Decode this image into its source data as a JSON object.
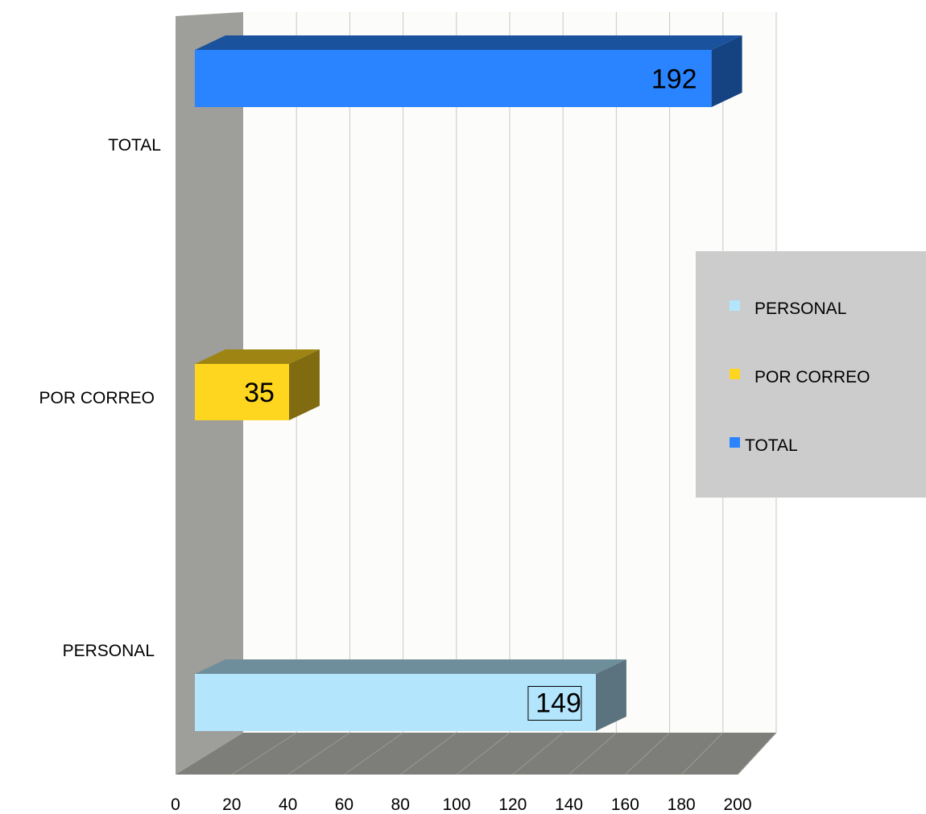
{
  "chart_data": {
    "type": "bar",
    "orientation": "horizontal",
    "three_d": true,
    "categories": [
      "PERSONAL",
      "POR  CORREO",
      "TOTAL"
    ],
    "series": [
      {
        "name": "PERSONAL",
        "values": [
          149,
          null,
          null
        ],
        "color": "#b3e5fc",
        "data_label": "149"
      },
      {
        "name": "POR CORREO",
        "values": [
          null,
          35,
          null
        ],
        "color": "#ffd61f",
        "data_label": "35"
      },
      {
        "name": "TOTAL",
        "values": [
          null,
          null,
          192
        ],
        "color": "#2a84ff",
        "data_label": "192"
      }
    ],
    "xlim": [
      0,
      200
    ],
    "x_ticks": [
      "0",
      "20",
      "40",
      "60",
      "80",
      "100",
      "120",
      "140",
      "160",
      "180",
      "200"
    ],
    "grid": true,
    "legend": {
      "placement": "right",
      "entries": [
        "PERSONAL",
        "POR CORREO",
        "TOTAL"
      ]
    },
    "title": "",
    "xlabel": "",
    "ylabel": ""
  }
}
